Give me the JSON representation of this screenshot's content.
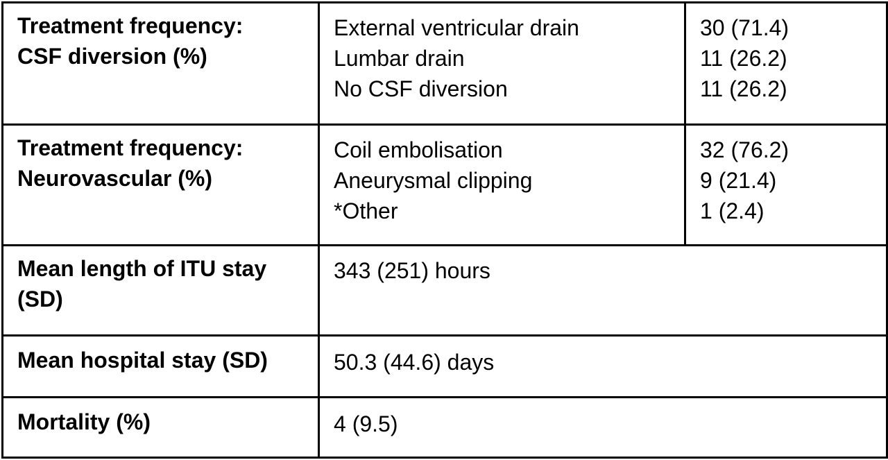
{
  "rows": [
    {
      "label": [
        "Treatment frequency:",
        "CSF diversion (%)"
      ],
      "items": [
        "External ventricular drain",
        "Lumbar drain",
        "No CSF diversion"
      ],
      "values": [
        "30 (71.4)",
        "11 (26.2)",
        "11 (26.2)"
      ]
    },
    {
      "label": [
        "Treatment frequency:",
        "Neurovascular (%)"
      ],
      "items": [
        "Coil embolisation",
        "Aneurysmal clipping",
        "*Other"
      ],
      "values": [
        "32 (76.2)",
        "9 (21.4)",
        "1 (2.4)"
      ]
    },
    {
      "label": [
        "Mean length of ITU stay",
        "(SD)"
      ],
      "value": "343 (251) hours"
    },
    {
      "label": [
        "Mean hospital stay (SD)"
      ],
      "value": "50.3 (44.6) days"
    },
    {
      "label": [
        "Mortality (%)"
      ],
      "value": "4 (9.5)"
    }
  ]
}
